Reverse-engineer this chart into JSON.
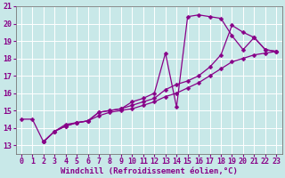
{
  "background_color": "#c8e8e8",
  "grid_color": "#b8d8d8",
  "line_color": "#880088",
  "markersize": 2.5,
  "linewidth": 0.9,
  "xlabel": "Windchill (Refroidissement éolien,°C)",
  "xlabel_fontsize": 6.5,
  "tick_fontsize": 6,
  "xlim": [
    -0.5,
    23.5
  ],
  "ylim": [
    12.5,
    21.0
  ],
  "yticks": [
    13,
    14,
    15,
    16,
    17,
    18,
    19,
    20,
    21
  ],
  "xticks": [
    0,
    1,
    2,
    3,
    4,
    5,
    6,
    7,
    8,
    9,
    10,
    11,
    12,
    13,
    14,
    15,
    16,
    17,
    18,
    19,
    20,
    21,
    22,
    23
  ],
  "series1_x": [
    0,
    1,
    2,
    3,
    4,
    5,
    6,
    7,
    8,
    9,
    10,
    11,
    12,
    13,
    14,
    15,
    16,
    17,
    18,
    19,
    20,
    21,
    22,
    23
  ],
  "series1_y": [
    14.5,
    14.5,
    13.2,
    13.8,
    14.2,
    14.3,
    14.4,
    14.7,
    14.9,
    15.0,
    15.1,
    15.3,
    15.5,
    15.8,
    16.0,
    16.3,
    16.6,
    17.0,
    17.4,
    17.8,
    18.0,
    18.2,
    18.3,
    18.4
  ],
  "series2_x": [
    2,
    3,
    4,
    5,
    6,
    7,
    8,
    9,
    10,
    11,
    12,
    13,
    14,
    15,
    16,
    17,
    18,
    19,
    20,
    21,
    22,
    23
  ],
  "series2_y": [
    13.2,
    13.8,
    14.1,
    14.3,
    14.4,
    14.9,
    15.0,
    15.1,
    15.5,
    15.7,
    16.0,
    18.3,
    15.2,
    20.4,
    20.5,
    20.4,
    20.3,
    19.3,
    18.5,
    19.2,
    18.5,
    18.4
  ],
  "series3_x": [
    2,
    3,
    4,
    5,
    6,
    7,
    8,
    9,
    10,
    11,
    12,
    13,
    14,
    15,
    16,
    17,
    18,
    19,
    20,
    21,
    22,
    23
  ],
  "series3_y": [
    13.2,
    13.8,
    14.1,
    14.3,
    14.4,
    14.9,
    15.0,
    15.1,
    15.3,
    15.5,
    15.7,
    16.2,
    16.5,
    16.7,
    17.0,
    17.5,
    18.2,
    19.9,
    19.5,
    19.2,
    18.5,
    18.4
  ]
}
